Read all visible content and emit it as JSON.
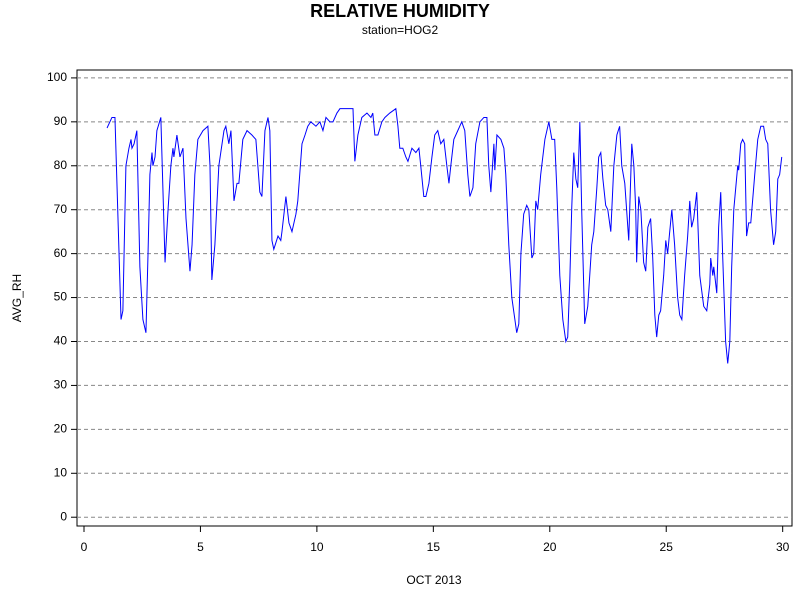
{
  "chart_data": {
    "type": "line",
    "title": "RELATIVE HUMIDITY",
    "subtitle": "station=HOG2",
    "x_label": "OCT 2013",
    "y_label": "AVG_RH",
    "xlim": [
      -0.3,
      30.4
    ],
    "xticks": [
      0,
      5,
      10,
      15,
      20,
      25,
      30
    ],
    "ylim": [
      -2,
      101.8
    ],
    "yticks": [
      0,
      10,
      20,
      30,
      40,
      50,
      60,
      70,
      80,
      90,
      100
    ],
    "grid": true,
    "x": [
      0.99,
      1.2,
      1.33,
      1.59,
      1.67,
      1.8,
      1.93,
      2.02,
      2.06,
      2.15,
      2.27,
      2.4,
      2.53,
      2.66,
      2.75,
      2.83,
      2.92,
      2.96,
      3.05,
      3.13,
      3.3,
      3.48,
      3.61,
      3.73,
      3.82,
      3.86,
      3.99,
      4.12,
      4.25,
      4.38,
      4.55,
      4.64,
      4.76,
      4.89,
      5.11,
      5.32,
      5.41,
      5.49,
      5.62,
      5.79,
      6.01,
      6.09,
      6.22,
      6.31,
      6.44,
      6.57,
      6.65,
      6.82,
      7.0,
      7.21,
      7.38,
      7.55,
      7.64,
      7.77,
      7.9,
      7.98,
      8.07,
      8.15,
      8.33,
      8.45,
      8.5,
      8.67,
      8.8,
      8.93,
      9.1,
      9.18,
      9.36,
      9.49,
      9.61,
      9.74,
      9.96,
      10.13,
      10.26,
      10.39,
      10.56,
      10.69,
      10.86,
      10.99,
      11.33,
      11.55,
      11.63,
      11.76,
      11.93,
      12.15,
      12.32,
      12.4,
      12.49,
      12.62,
      12.79,
      12.92,
      13.13,
      13.39,
      13.48,
      13.56,
      13.69,
      13.82,
      13.91,
      14.08,
      14.25,
      14.38,
      14.46,
      14.59,
      14.68,
      14.81,
      14.94,
      15.06,
      15.19,
      15.32,
      15.45,
      15.58,
      15.67,
      15.75,
      15.88,
      16.05,
      16.22,
      16.35,
      16.48,
      16.57,
      16.7,
      16.82,
      17.0,
      17.17,
      17.3,
      17.38,
      17.47,
      17.6,
      17.64,
      17.73,
      17.9,
      18.03,
      18.11,
      18.24,
      18.37,
      18.58,
      18.67,
      18.76,
      18.88,
      19.01,
      19.1,
      19.23,
      19.31,
      19.4,
      19.48,
      19.61,
      19.79,
      19.96,
      20.09,
      20.21,
      20.3,
      20.43,
      20.56,
      20.69,
      20.77,
      20.86,
      20.94,
      21.03,
      21.12,
      21.2,
      21.29,
      21.37,
      21.5,
      21.63,
      21.8,
      21.89,
      22.02,
      22.1,
      22.19,
      22.28,
      22.4,
      22.49,
      22.62,
      22.75,
      22.88,
      23.0,
      23.09,
      23.22,
      23.39,
      23.52,
      23.61,
      23.69,
      23.73,
      23.82,
      23.91,
      24.03,
      24.12,
      24.21,
      24.33,
      24.42,
      24.51,
      24.59,
      24.68,
      24.76,
      24.89,
      24.98,
      25.06,
      25.24,
      25.36,
      25.49,
      25.58,
      25.67,
      25.79,
      25.92,
      26.01,
      26.09,
      26.18,
      26.31,
      26.44,
      26.61,
      26.74,
      26.87,
      26.91,
      27.0,
      27.04,
      27.17,
      27.25,
      27.34,
      27.42,
      27.55,
      27.64,
      27.73,
      27.81,
      27.9,
      28.07,
      28.11,
      28.2,
      28.28,
      28.37,
      28.45,
      28.54,
      28.63,
      28.8,
      28.93,
      29.06,
      29.18,
      29.27,
      29.36,
      29.48,
      29.61,
      29.7,
      29.79,
      29.87,
      29.96
    ],
    "series": [
      {
        "name": "AVG_RH",
        "color": "#0000ff",
        "values": [
          88.6,
          91,
          91,
          45,
          47,
          80,
          84,
          86,
          84,
          85,
          88,
          57,
          45,
          42,
          60,
          78,
          83,
          80,
          82,
          88,
          91,
          58,
          70,
          80,
          84,
          82,
          87,
          82,
          84,
          68,
          56,
          62,
          78,
          86,
          88,
          89,
          80,
          54,
          62,
          80,
          88,
          89,
          85,
          88,
          72,
          76,
          76,
          86,
          88,
          87,
          86,
          74,
          73,
          88,
          91,
          88,
          63,
          61,
          64,
          63,
          65,
          73,
          67,
          65,
          69,
          72,
          85,
          87,
          89,
          90,
          89,
          90,
          88,
          91,
          90,
          90,
          92,
          93,
          93,
          93,
          81,
          87,
          91,
          92,
          91,
          92,
          87,
          87,
          90,
          91,
          92,
          93,
          89,
          84,
          84,
          82,
          81,
          84,
          83,
          84,
          80,
          73,
          73,
          76,
          82,
          87,
          88,
          85,
          86,
          80,
          76,
          80,
          86,
          88,
          90,
          88,
          78,
          73,
          75,
          85,
          90,
          91,
          91,
          80,
          74,
          85,
          79,
          87,
          86,
          84,
          78,
          62,
          50,
          42,
          44,
          60,
          69,
          71,
          70,
          59,
          60,
          72,
          70,
          78,
          86,
          90,
          86,
          86,
          75,
          55,
          45,
          40,
          41,
          54,
          70,
          83,
          77,
          75,
          90,
          70,
          44,
          48,
          62,
          65,
          75,
          82,
          83,
          77,
          71,
          70,
          65,
          80,
          87,
          89,
          80,
          76,
          63,
          85,
          80,
          70,
          58,
          73,
          70,
          58,
          56,
          66,
          68,
          59,
          46,
          41,
          46,
          47,
          55,
          63,
          60,
          70,
          62,
          50,
          46,
          45,
          55,
          64,
          72,
          66,
          68,
          74,
          55,
          48,
          47,
          53,
          59,
          55,
          57,
          51,
          66,
          74,
          60,
          40,
          35,
          40,
          57,
          70,
          80,
          79,
          85,
          86,
          85,
          64,
          67,
          67,
          78,
          86,
          89,
          89,
          86,
          85,
          70,
          62,
          65,
          77,
          78,
          82
        ]
      }
    ]
  }
}
